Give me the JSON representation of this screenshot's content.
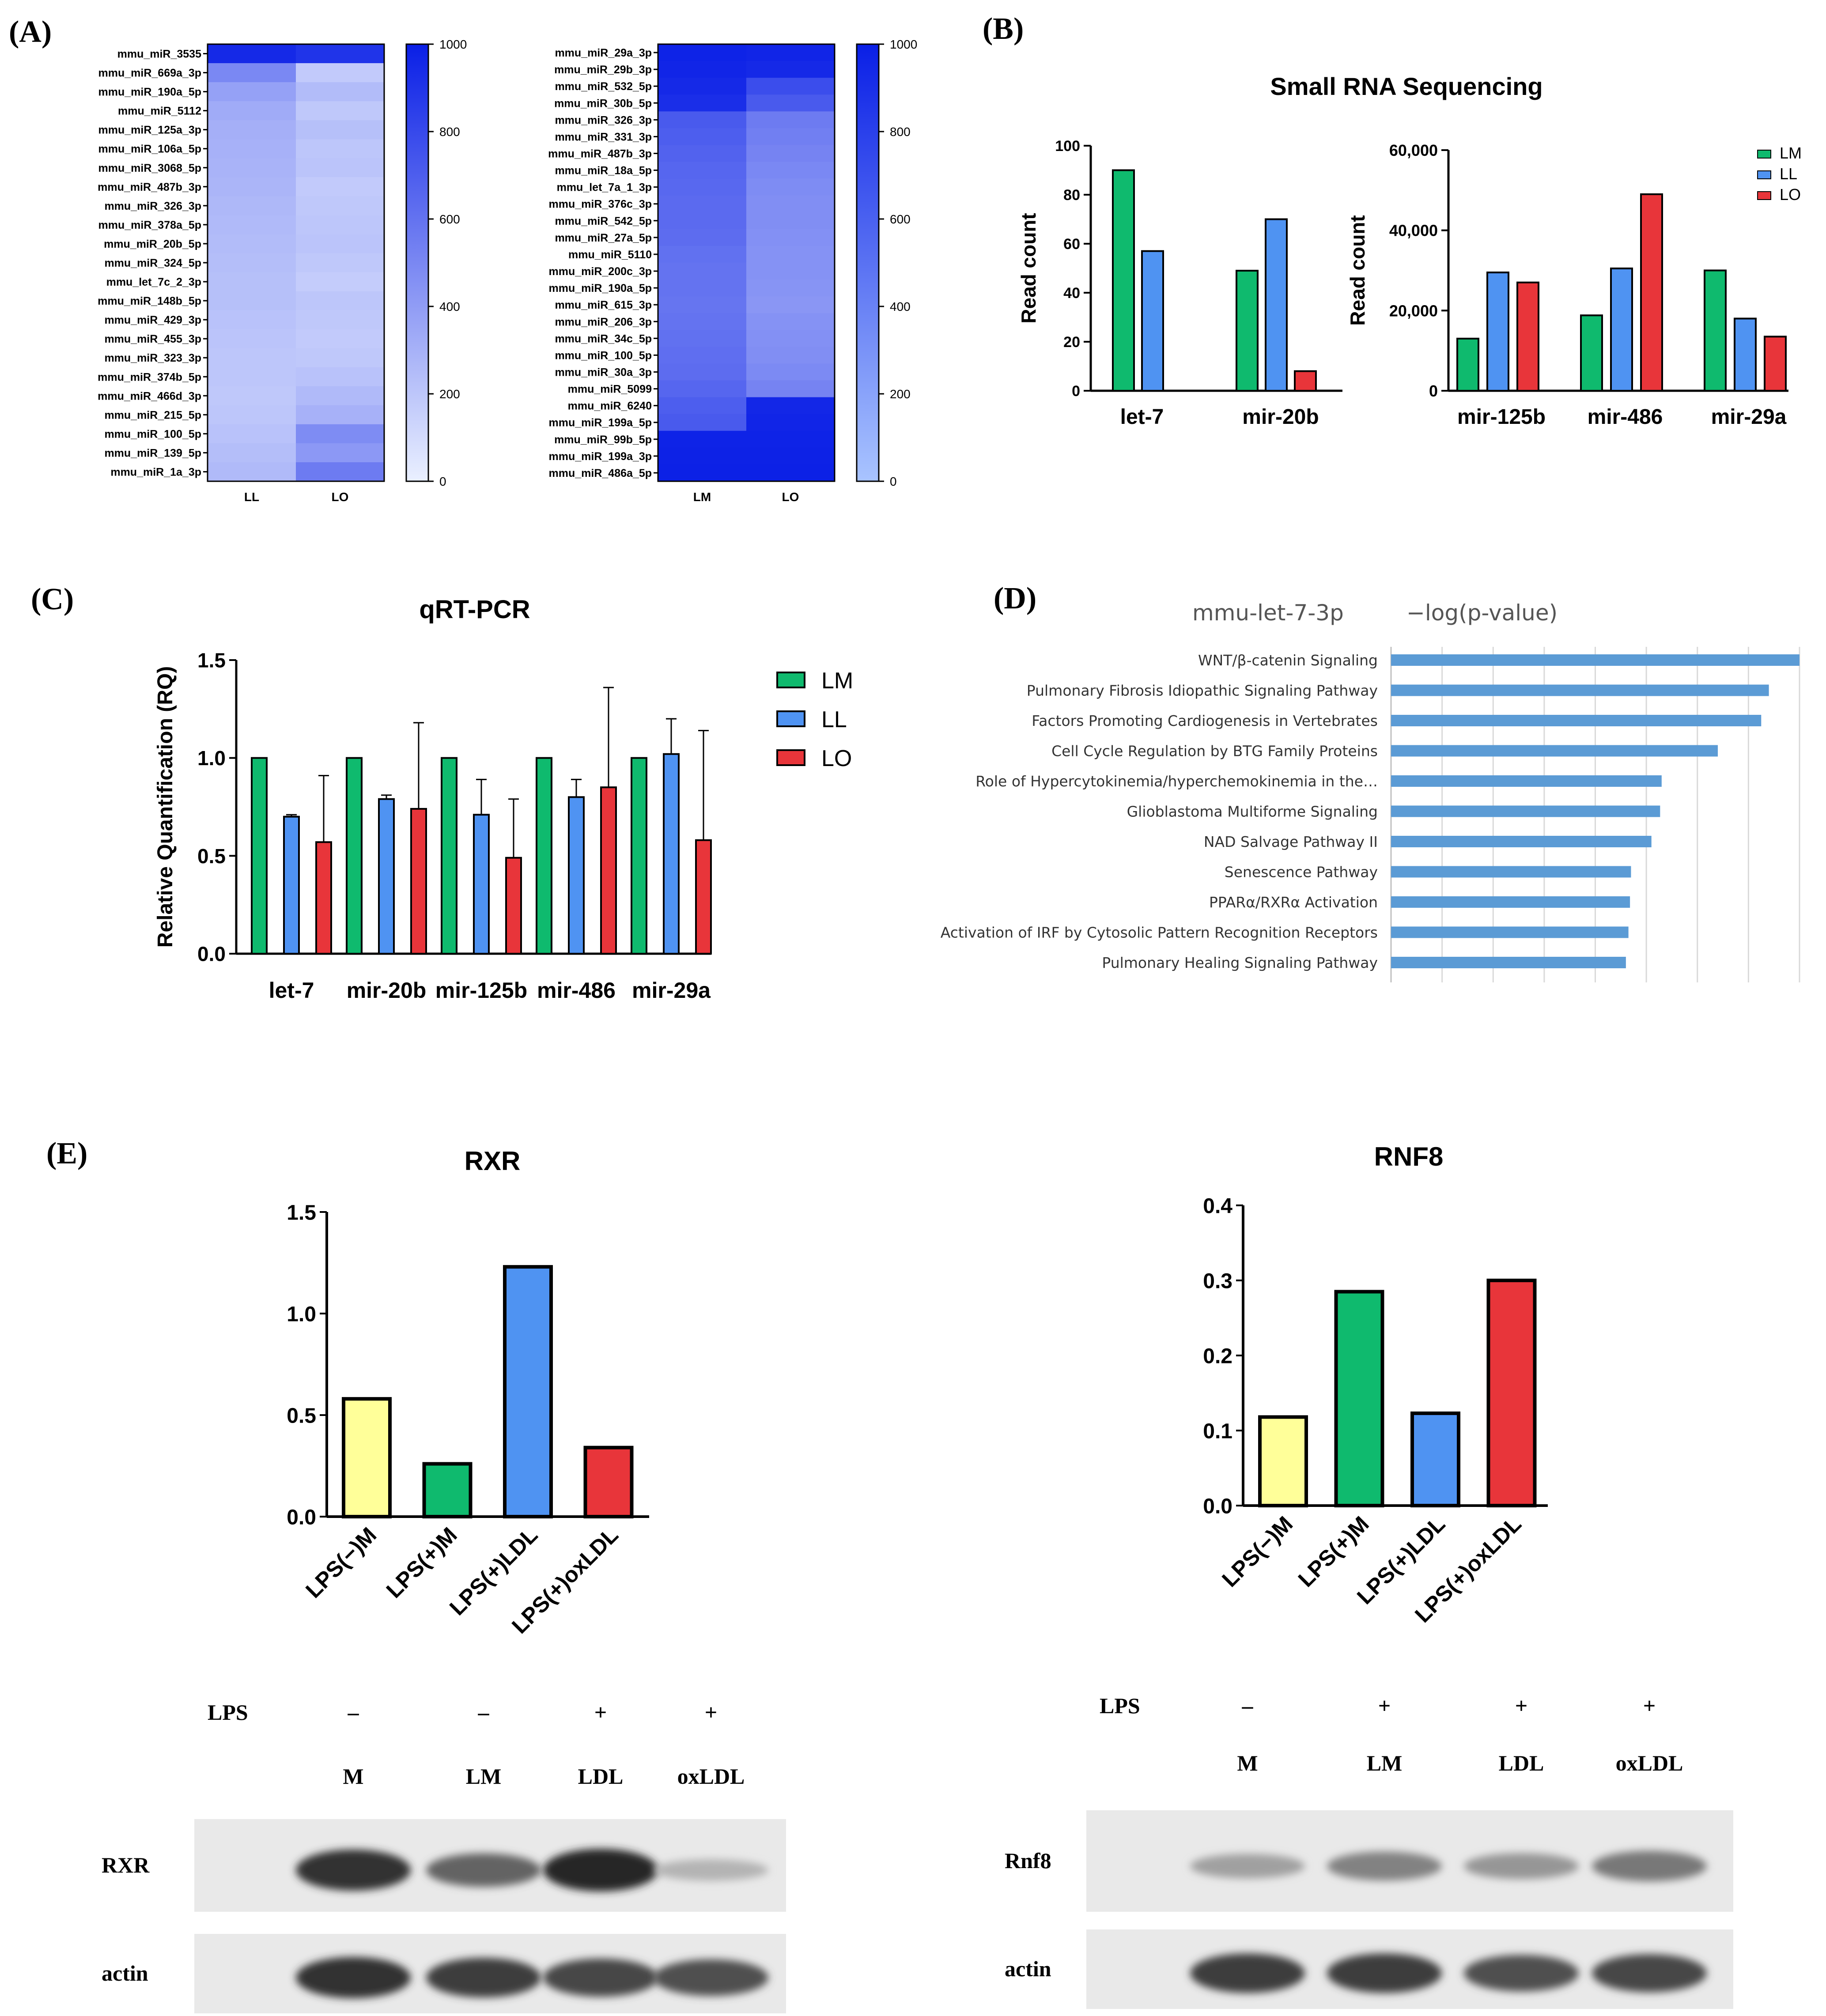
{
  "panels": {
    "A": "(A)",
    "B": "(B)",
    "C": "(C)",
    "D": "(D)",
    "E": "(E)"
  },
  "colors": {
    "LM": "#0fba6e",
    "LL": "#4f93f2",
    "LO": "#e8353a",
    "M": "#ffff99",
    "heat_max": "#0a1fe6",
    "heat_min": "#eaf0ff",
    "pathway_bar": "#5b9bd5"
  },
  "chart_data": [
    {
      "id": "A1",
      "type": "heatmap",
      "rows": [
        "mmu_miR_3535",
        "mmu_miR_669a_3p",
        "mmu_miR_190a_5p",
        "mmu_miR_5112",
        "mmu_miR_125a_3p",
        "mmu_miR_106a_5p",
        "mmu_miR_3068_5p",
        "mmu_miR_487b_3p",
        "mmu_miR_326_3p",
        "mmu_miR_378a_5p",
        "mmu_miR_20b_5p",
        "mmu_miR_324_5p",
        "mmu_let_7c_2_3p",
        "mmu_miR_148b_5p",
        "mmu_miR_429_3p",
        "mmu_miR_455_3p",
        "mmu_miR_323_3p",
        "mmu_miR_374b_5p",
        "mmu_miR_466d_3p",
        "mmu_miR_215_5p",
        "mmu_miR_100_5p",
        "mmu_miR_139_5p",
        "mmu_miR_1a_3p"
      ],
      "columns": [
        "LL",
        "LO"
      ],
      "values": [
        [
          950,
          900
        ],
        [
          500,
          180
        ],
        [
          380,
          250
        ],
        [
          330,
          190
        ],
        [
          310,
          230
        ],
        [
          300,
          200
        ],
        [
          290,
          210
        ],
        [
          280,
          180
        ],
        [
          270,
          190
        ],
        [
          260,
          200
        ],
        [
          250,
          210
        ],
        [
          240,
          190
        ],
        [
          230,
          170
        ],
        [
          230,
          200
        ],
        [
          220,
          190
        ],
        [
          210,
          180
        ],
        [
          200,
          190
        ],
        [
          200,
          220
        ],
        [
          190,
          260
        ],
        [
          200,
          300
        ],
        [
          220,
          480
        ],
        [
          240,
          420
        ],
        [
          260,
          560
        ]
      ],
      "scale_ticks": [
        "1000",
        "800",
        "600",
        "400",
        "200",
        "0"
      ],
      "scale_range": [
        0,
        1000
      ]
    },
    {
      "id": "A2",
      "type": "heatmap",
      "rows": [
        "mmu_miR_29a_3p",
        "mmu_miR_29b_3p",
        "mmu_miR_532_5p",
        "mmu_miR_30b_5p",
        "mmu_miR_326_3p",
        "mmu_miR_331_3p",
        "mmu_miR_487b_3p",
        "mmu_miR_18a_5p",
        "mmu_let_7a_1_3p",
        "mmu_miR_376c_3p",
        "mmu_miR_542_5p",
        "mmu_miR_27a_5p",
        "mmu_miR_5110",
        "mmu_miR_200c_3p",
        "mmu_miR_190a_5p",
        "mmu_miR_615_3p",
        "mmu_miR_206_3p",
        "mmu_miR_34c_5p",
        "mmu_miR_100_5p",
        "mmu_miR_30a_3p",
        "mmu_miR_5099",
        "mmu_miR_6240",
        "mmu_miR_199a_5p",
        "mmu_miR_99b_5p",
        "mmu_miR_199a_3p",
        "mmu_miR_486a_5p"
      ],
      "columns": [
        "LM",
        "LO"
      ],
      "values": [
        [
          980,
          970
        ],
        [
          970,
          950
        ],
        [
          950,
          780
        ],
        [
          930,
          720
        ],
        [
          720,
          560
        ],
        [
          700,
          540
        ],
        [
          680,
          520
        ],
        [
          660,
          500
        ],
        [
          650,
          480
        ],
        [
          640,
          470
        ],
        [
          640,
          470
        ],
        [
          630,
          460
        ],
        [
          610,
          450
        ],
        [
          600,
          450
        ],
        [
          600,
          440
        ],
        [
          590,
          430
        ],
        [
          600,
          450
        ],
        [
          610,
          460
        ],
        [
          620,
          470
        ],
        [
          630,
          490
        ],
        [
          660,
          520
        ],
        [
          700,
          960
        ],
        [
          720,
          970
        ],
        [
          980,
          980
        ],
        [
          985,
          985
        ],
        [
          990,
          990
        ]
      ],
      "scale_ticks": [
        "1000",
        "800",
        "600",
        "400",
        "200",
        "0"
      ],
      "scale_range": [
        0,
        1000
      ]
    },
    {
      "id": "B1",
      "type": "bar",
      "title": "Small RNA Sequencing",
      "ylabel": "Read count",
      "categories": [
        "let-7",
        "mir-20b"
      ],
      "ylim": [
        0,
        100
      ],
      "yticks": [
        "0",
        "20",
        "40",
        "60",
        "80",
        "100"
      ],
      "series": [
        {
          "name": "LM",
          "values": [
            90,
            49
          ]
        },
        {
          "name": "LL",
          "values": [
            57,
            70
          ]
        },
        {
          "name": "LO",
          "values": [
            null,
            8
          ]
        }
      ]
    },
    {
      "id": "B2",
      "type": "bar",
      "ylabel": "Read count",
      "categories": [
        "mir-125b",
        "mir-486",
        "mir-29a"
      ],
      "ylim": [
        0,
        60000
      ],
      "yticks": [
        "0",
        "20,000",
        "40,000",
        "60,000"
      ],
      "series": [
        {
          "name": "LM",
          "values": [
            13000,
            18800,
            30000
          ]
        },
        {
          "name": "LL",
          "values": [
            29500,
            30500,
            18000
          ]
        },
        {
          "name": "LO",
          "values": [
            27000,
            49000,
            13500
          ]
        }
      ],
      "legend": [
        "LM",
        "LL",
        "LO"
      ],
      "legend_position": "top-right"
    },
    {
      "id": "C",
      "type": "bar",
      "title": "qRT-PCR",
      "ylabel": "Relative Quantification (RQ)",
      "categories": [
        "let-7",
        "mir-20b",
        "mir-125b",
        "mir-486",
        "mir-29a"
      ],
      "ylim": [
        0,
        1.5
      ],
      "yticks": [
        "0.0",
        "0.5",
        "1.0",
        "1.5"
      ],
      "series": [
        {
          "name": "LM",
          "values": [
            1.0,
            1.0,
            1.0,
            1.0,
            1.0
          ],
          "err": [
            0,
            0,
            0,
            0,
            0
          ]
        },
        {
          "name": "LL",
          "values": [
            0.7,
            0.79,
            0.71,
            0.8,
            1.02
          ],
          "err": [
            0.01,
            0.02,
            0.18,
            0.09,
            0.18
          ]
        },
        {
          "name": "LO",
          "values": [
            0.57,
            0.74,
            0.49,
            0.85,
            0.58
          ],
          "err": [
            0.34,
            0.44,
            0.3,
            0.51,
            0.56
          ]
        }
      ],
      "legend": [
        "LM",
        "LL",
        "LO"
      ],
      "legend_position": "right"
    },
    {
      "id": "D",
      "type": "bar",
      "orientation": "horizontal",
      "title": "mmu-let-7-3p",
      "xlabel": "−log(p-value)",
      "xlim": [
        0,
        8
      ],
      "categories": [
        "WNT/β-catenin Signaling",
        "Pulmonary Fibrosis Idiopathic Signaling Pathway",
        "Factors Promoting Cardiogenesis in Vertebrates",
        "Cell Cycle Regulation by BTG Family Proteins",
        "Role of Hypercytokinemia/hyperchemokinemia in the…",
        "Glioblastoma Multiforme Signaling",
        "NAD Salvage Pathway II",
        "Senescence Pathway",
        "PPARα/RXRα Activation",
        "Activation of IRF by Cytosolic Pattern Recognition Receptors",
        "Pulmonary Healing Signaling Pathway"
      ],
      "values": [
        8.0,
        7.4,
        7.25,
        6.4,
        5.3,
        5.27,
        5.1,
        4.7,
        4.68,
        4.65,
        4.6
      ]
    },
    {
      "id": "E1",
      "type": "bar",
      "title": "RXR",
      "categories": [
        "LPS(−)M",
        "LPS(+)M",
        "LPS(+)LDL",
        "LPS(+)oxLDL"
      ],
      "ylim": [
        0,
        1.5
      ],
      "yticks": [
        "0.0",
        "0.5",
        "1.0",
        "1.5"
      ],
      "values": [
        0.58,
        0.26,
        1.23,
        0.34
      ]
    },
    {
      "id": "E2",
      "type": "bar",
      "title": "RNF8",
      "categories": [
        "LPS(−)M",
        "LPS(+)M",
        "LPS(+)LDL",
        "LPS(+)oxLDL"
      ],
      "ylim": [
        0,
        0.4
      ],
      "yticks": [
        "0.0",
        "0.1",
        "0.2",
        "0.3",
        "0.4"
      ],
      "values": [
        0.118,
        0.285,
        0.123,
        0.3
      ]
    }
  ],
  "blots": [
    {
      "id": "rxr",
      "lps_label": "LPS",
      "lps": [
        "–",
        "–",
        "+",
        "+"
      ],
      "lanes": [
        "M",
        "LM",
        "LDL",
        "oxLDL"
      ],
      "rows": [
        "RXR",
        "actin"
      ],
      "band_strength": [
        [
          0.9,
          0.65,
          0.95,
          0.25
        ],
        [
          0.9,
          0.85,
          0.8,
          0.75
        ]
      ]
    },
    {
      "id": "rnf8",
      "lps_label": "LPS",
      "lps": [
        "–",
        "+",
        "+",
        "+"
      ],
      "lanes": [
        "M",
        "LM",
        "LDL",
        "oxLDL"
      ],
      "rows": [
        "Rnf8",
        "actin"
      ],
      "band_strength": [
        [
          0.35,
          0.5,
          0.4,
          0.55
        ],
        [
          0.85,
          0.85,
          0.75,
          0.8
        ]
      ]
    }
  ]
}
